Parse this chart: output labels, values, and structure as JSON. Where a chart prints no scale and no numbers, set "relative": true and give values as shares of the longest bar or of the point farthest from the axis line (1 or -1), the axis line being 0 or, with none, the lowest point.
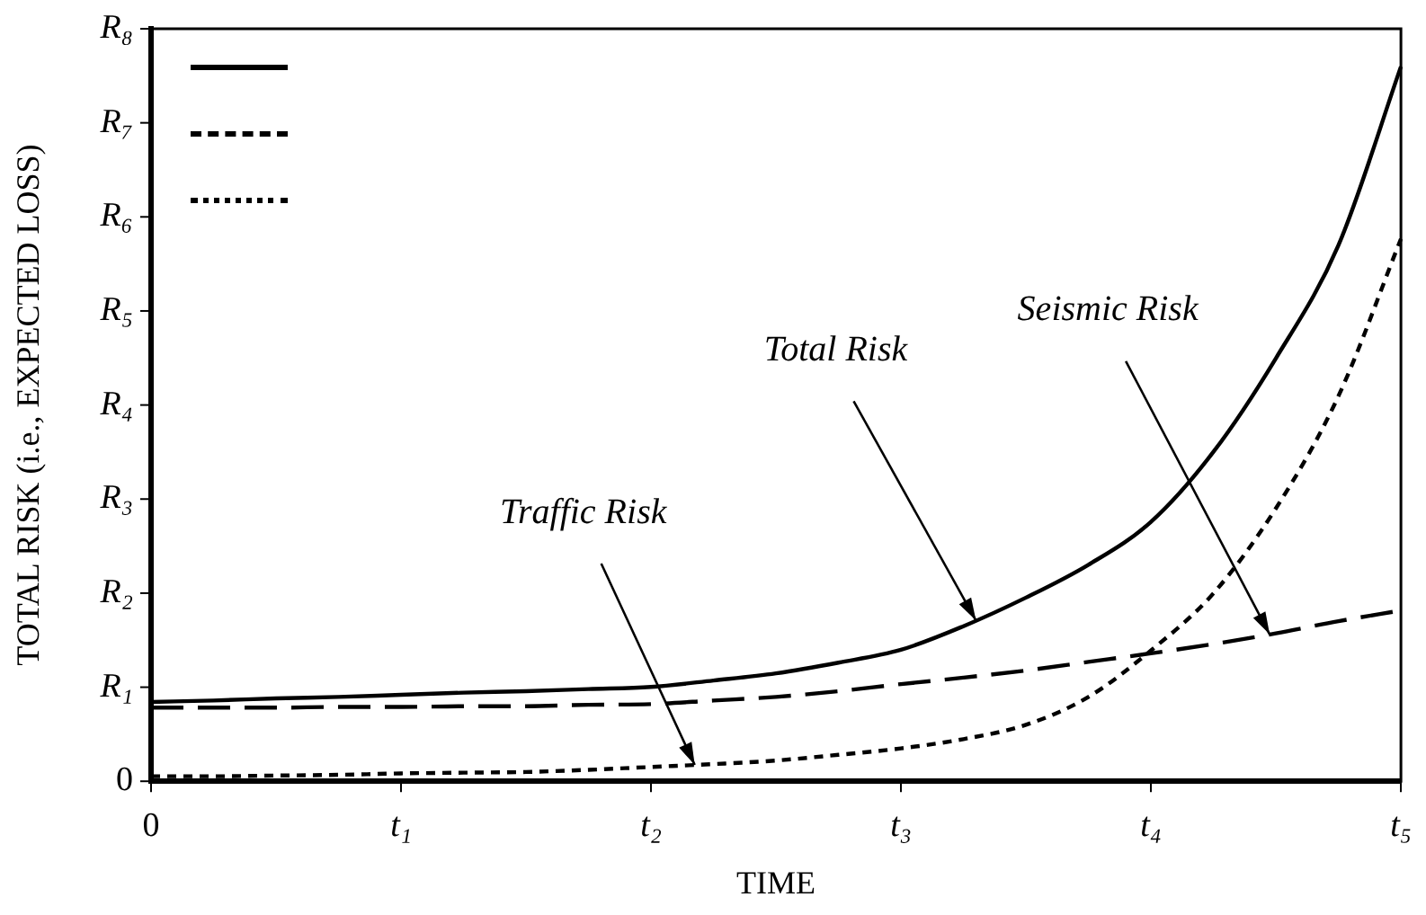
{
  "chart_data": {
    "type": "line",
    "relative": true,
    "xlabel": "TIME",
    "ylabel": "TOTAL RISK (i.e., EXPECTED LOSS)",
    "categories": [
      "0",
      null,
      null,
      null,
      "t₁",
      null,
      null,
      null,
      "t₂",
      null,
      null,
      null,
      "t₃",
      null,
      null,
      null,
      "t₄",
      null,
      null,
      null,
      "t₅"
    ],
    "series": [
      {
        "color": "#000000",
        "line_style": "solid",
        "values": [
          0.111,
          0.113,
          0.116,
          0.118,
          0.121,
          0.124,
          0.126,
          0.129,
          0.132,
          0.141,
          0.151,
          0.166,
          0.184,
          0.217,
          0.257,
          0.303,
          0.363,
          0.461,
          0.592,
          0.75,
          1
        ]
      },
      {
        "color": "#000000",
        "line_style": "dashed",
        "values": [
          0.103,
          0.103,
          0.103,
          0.104,
          0.104,
          0.105,
          0.105,
          0.107,
          0.108,
          0.113,
          0.118,
          0.126,
          0.136,
          0.145,
          0.155,
          0.167,
          0.179,
          0.192,
          0.207,
          0.224,
          0.239
        ]
      },
      {
        "color": "#000000",
        "line_style": "dotted",
        "values": [
          0.007,
          0.007,
          0.008,
          0.009,
          0.011,
          0.012,
          0.013,
          0.016,
          0.02,
          0.024,
          0.029,
          0.037,
          0.046,
          0.059,
          0.079,
          0.118,
          0.183,
          0.263,
          0.382,
          0.539,
          0.759
        ]
      }
    ],
    "annotations": [
      "0",
      "R₁",
      "R₂",
      "R₃",
      "R₄",
      "R₅",
      "R₆",
      "R₇",
      "R₈",
      "Total Risk",
      "Traffic Risk",
      "Seismic Risk"
    ],
    "grid": false,
    "marker": "none"
  }
}
